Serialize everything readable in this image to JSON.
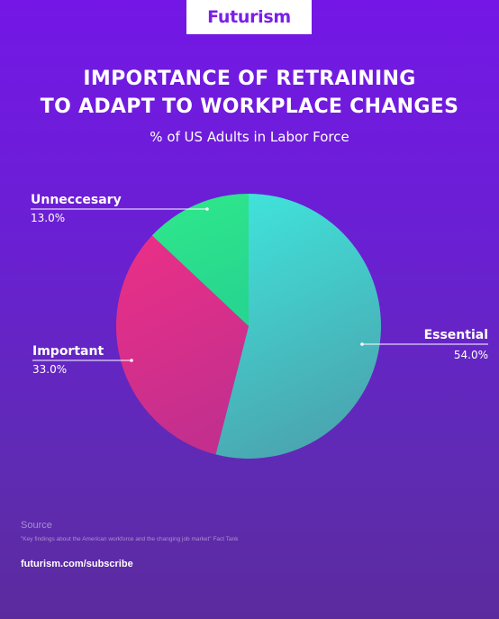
{
  "brand": {
    "name": "Futurism"
  },
  "header": {
    "title_line1": "IMPORTANCE OF RETRAINING",
    "title_line2": "TO ADAPT TO WORKPLACE CHANGES",
    "subtitle": "% of US Adults in Labor Force"
  },
  "chart_data": {
    "type": "pie",
    "title": "IMPORTANCE OF RETRAINING TO ADAPT TO WORKPLACE CHANGES",
    "subtitle": "% of US Adults in Labor Force",
    "slices": [
      {
        "label": "Essential",
        "value": 54.0,
        "value_label": "54.0%",
        "color_start": "#3fe6dc",
        "color_end": "#4aa8b2"
      },
      {
        "label": "Important",
        "value": 33.0,
        "value_label": "33.0%",
        "color_start": "#ec2f86",
        "color_end": "#c42f8e"
      },
      {
        "label": "Unneccesary",
        "value": 13.0,
        "value_label": "13.0%",
        "color_start": "#2fe88a",
        "color_end": "#27d68f"
      }
    ]
  },
  "footer": {
    "source_label": "Source",
    "source_text": "\"Key findings about the American workforce and the changing job market\" Fact Tank",
    "link": "futurism.com/subscribe"
  }
}
